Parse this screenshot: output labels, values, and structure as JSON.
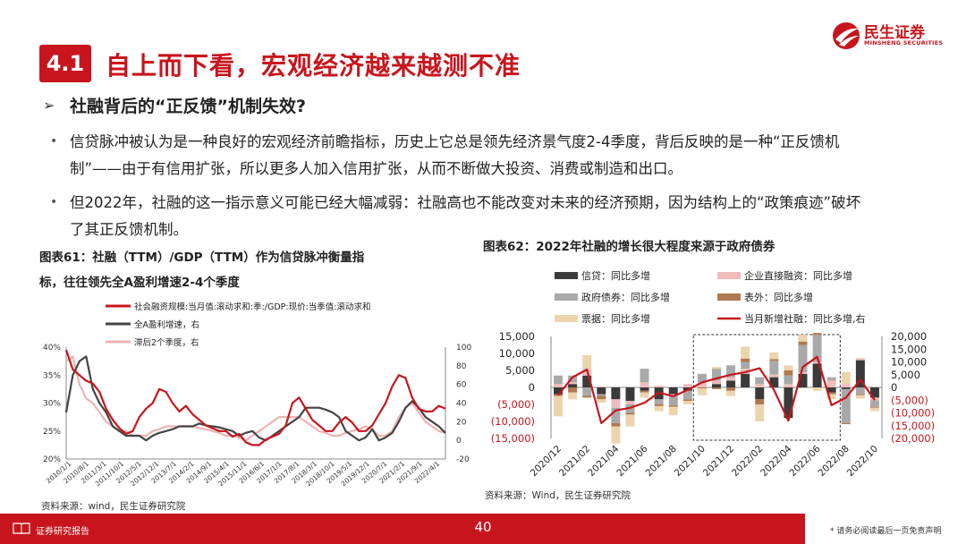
{
  "header": {
    "section_number": "4.1",
    "title": "自上而下看，宏观经济越来越测不准",
    "logo_name": "民生证券",
    "logo_en": "MINSHENG SECURITIES"
  },
  "subheading": "社融背后的“正反馈”机制失效?",
  "bullets": [
    {
      "line1": "信贷脉冲被认为是一种良好的宏观经济前瞻指标，历史上它总是领先经济景气度2-4季度，背后反映的是一种“正反馈机",
      "line2": "制”——由于有信用扩张，所以更多人加入信用扩张，从而不断做大投资、消费或制造和出口。"
    },
    {
      "line1": "但2022年，社融的这一指示意义可能已经大幅减弱：社融高也不能改变对未来的经济预期，因为结构上的“政策痕迹”破坏",
      "line2": "了其正反馈机制。"
    }
  ],
  "footer": {
    "label": "证券研究报告",
    "page": "40",
    "disclaimer": "* 请务必阅读最后一页免责声明"
  },
  "chart_data": [
    {
      "type": "line",
      "title_line1": "图表61：社融（TTM）/GDP（TTM）作为信贷脉冲衡量指",
      "title_line2": "标，往往领先全A盈利增速2-4个季度",
      "source": "资料来源：wind，民生证券研究院",
      "x_ticks": [
        "2010/1/1",
        "2010/8/1",
        "2011/3/1",
        "2011/10/1",
        "2012/5/1",
        "2012/12/1",
        "2013/7/1",
        "2014/2/1",
        "2014/9/1",
        "2015/4/1",
        "2015/11/1",
        "2016/6/1",
        "2017/1/1",
        "2017/8/1",
        "2018/3/1",
        "2018/10/1",
        "2019/5/1",
        "2019/12/1",
        "2020/7/1",
        "2021/2/1",
        "2021/9/1",
        "2022/4/1"
      ],
      "left_axis": {
        "ticks": [
          "40%",
          "35%",
          "30%",
          "25%",
          "20%"
        ],
        "range": [
          20,
          40
        ]
      },
      "right_axis": {
        "ticks": [
          "100",
          "80",
          "60",
          "40",
          "20",
          "0",
          "-20"
        ],
        "range": [
          -20,
          100
        ]
      },
      "series": [
        {
          "name": "社会融资规模:当月值:滚动求和:季:/GDP:现价:当季值:滚动求和",
          "color": "#c8151d",
          "axis": "left",
          "values": [
            39.5,
            36,
            35,
            34,
            33.5,
            32,
            29,
            27,
            25.5,
            24.5,
            25,
            27.5,
            29,
            30,
            32.5,
            32,
            30,
            28.5,
            29.5,
            28,
            27,
            26,
            25.5,
            25,
            25,
            24,
            24.5,
            23,
            22.5,
            22.5,
            23.5,
            24,
            24.5,
            26,
            30,
            31,
            29,
            27,
            26,
            25,
            25,
            26.5,
            27.5,
            26.5,
            25,
            25,
            26,
            28,
            30,
            33,
            35,
            34.5,
            31,
            29,
            28.5,
            28.5,
            29.5,
            29
          ]
        },
        {
          "name": "全A盈利增速，右",
          "color": "#444444",
          "axis": "right",
          "values": [
            30,
            70,
            85,
            90,
            55,
            40,
            30,
            15,
            10,
            5,
            5,
            5,
            0,
            5,
            8,
            10,
            12,
            15,
            15,
            15,
            18,
            16,
            15,
            14,
            12,
            10,
            5,
            8,
            10,
            3,
            0,
            5,
            10,
            15,
            20,
            25,
            35,
            35,
            35,
            33,
            30,
            25,
            10,
            5,
            0,
            3,
            12,
            0,
            3,
            8,
            20,
            35,
            42,
            35,
            25,
            20,
            15,
            8
          ]
        },
        {
          "name": "滞后2个季度，右",
          "color": "#eeb3b3",
          "axis": "right",
          "values": [
            85,
            90,
            60,
            45,
            40,
            30,
            20,
            15,
            10,
            10,
            5,
            5,
            5,
            10,
            12,
            15,
            15,
            15,
            15,
            15,
            13,
            12,
            10,
            8,
            5,
            5,
            3,
            0,
            5,
            10,
            15,
            20,
            25,
            25,
            25,
            25,
            20,
            15,
            10,
            8,
            5,
            5,
            8,
            10,
            12,
            15,
            12,
            5,
            5,
            10,
            25,
            35,
            40,
            30,
            20,
            15,
            10,
            8
          ]
        }
      ]
    },
    {
      "type": "bar",
      "title": "图表62：2022年社融的增长很大程度来源于政府债券",
      "source": "资料来源：Wind，民生证券研究院",
      "x_ticks": [
        "2020/12",
        "2021/02",
        "2021/04",
        "2021/06",
        "2021/08",
        "2021/10",
        "2021/12",
        "2022/02",
        "2022/04",
        "2022/06",
        "2022/08",
        "2022/10"
      ],
      "left_axis": {
        "ticks": [
          "15,000",
          "10,000",
          "5,000",
          "0",
          "(5,000)",
          "(10,000)",
          "(15,000)"
        ],
        "range": [
          -15000,
          15000
        ]
      },
      "right_axis": {
        "ticks": [
          "20,000",
          "15,000",
          "10,000",
          "5,000",
          "0",
          "(5,000)",
          "(10,000)",
          "(15,000)",
          "(20,000)"
        ],
        "range": [
          -20000,
          20000
        ]
      },
      "categories": [
        "2020/12",
        "2021/01",
        "2021/02",
        "2021/03",
        "2021/04",
        "2021/05",
        "2021/06",
        "2021/07",
        "2021/08",
        "2021/09",
        "2021/10",
        "2021/11",
        "2021/12",
        "2022/01",
        "2022/02",
        "2022/03",
        "2022/04",
        "2022/05",
        "2022/06",
        "2022/07",
        "2022/08",
        "2022/09",
        "2022/10"
      ],
      "series": [
        {
          "name": "信贷：同比多增",
          "color": "#3a3a3a",
          "values": [
            -2000,
            1000,
            3500,
            -2000,
            -3500,
            -4000,
            -1000,
            -3500,
            -2000,
            -1000,
            0,
            1000,
            2000,
            4000,
            -3500,
            3000,
            -9000,
            4000,
            7000,
            -1500,
            -500,
            8000,
            -3000
          ]
        },
        {
          "name": "企业直接融资：同比多增",
          "color": "#f0bcbc",
          "values": [
            1000,
            500,
            2000,
            300,
            -2500,
            -1000,
            1500,
            500,
            -200,
            1000,
            1500,
            1000,
            1000,
            1500,
            1000,
            800,
            1000,
            500,
            500,
            2000,
            1000,
            600,
            -800
          ]
        },
        {
          "name": "政府债券：同比多增",
          "color": "#a9a9a9",
          "values": [
            2500,
            2000,
            -2500,
            -500,
            -4500,
            -2500,
            4000,
            -1500,
            -3000,
            -2500,
            2500,
            3500,
            3500,
            2000,
            2000,
            4000,
            2500,
            8000,
            8000,
            1000,
            -10000,
            -2000,
            -2000
          ]
        },
        {
          "name": "表外：同比多增",
          "color": "#b07850",
          "values": [
            -500,
            -1500,
            -500,
            -1000,
            -1000,
            -500,
            -500,
            -500,
            -500,
            -500,
            -300,
            -500,
            -1000,
            1000,
            -1500,
            500,
            1500,
            1000,
            500,
            -500,
            -300,
            -300,
            -200
          ]
        },
        {
          "name": "票据：同比多增",
          "color": "#ecd5ae",
          "values": [
            -6000,
            -2000,
            4000,
            -1000,
            -5000,
            -3500,
            -1500,
            -1500,
            -2500,
            -1000,
            -2000,
            500,
            -1500,
            3500,
            -5000,
            2000,
            1500,
            2000,
            -1000,
            -1500,
            3500,
            -1000,
            -1000
          ]
        },
        {
          "name": "当月新增社融：同比多增,右",
          "color": "#c8151d",
          "axis": "right",
          "values": [
            -3000,
            4000,
            7000,
            -14000,
            -9000,
            -8000,
            -6000,
            -2000,
            -3500,
            -1000,
            2000,
            3500,
            5000,
            6000,
            7500,
            -1000,
            -13000,
            8000,
            12000,
            -7000,
            -4000,
            3000,
            -5000
          ]
        }
      ],
      "highlight_range": [
        "2021/10",
        "2022/07"
      ]
    }
  ]
}
